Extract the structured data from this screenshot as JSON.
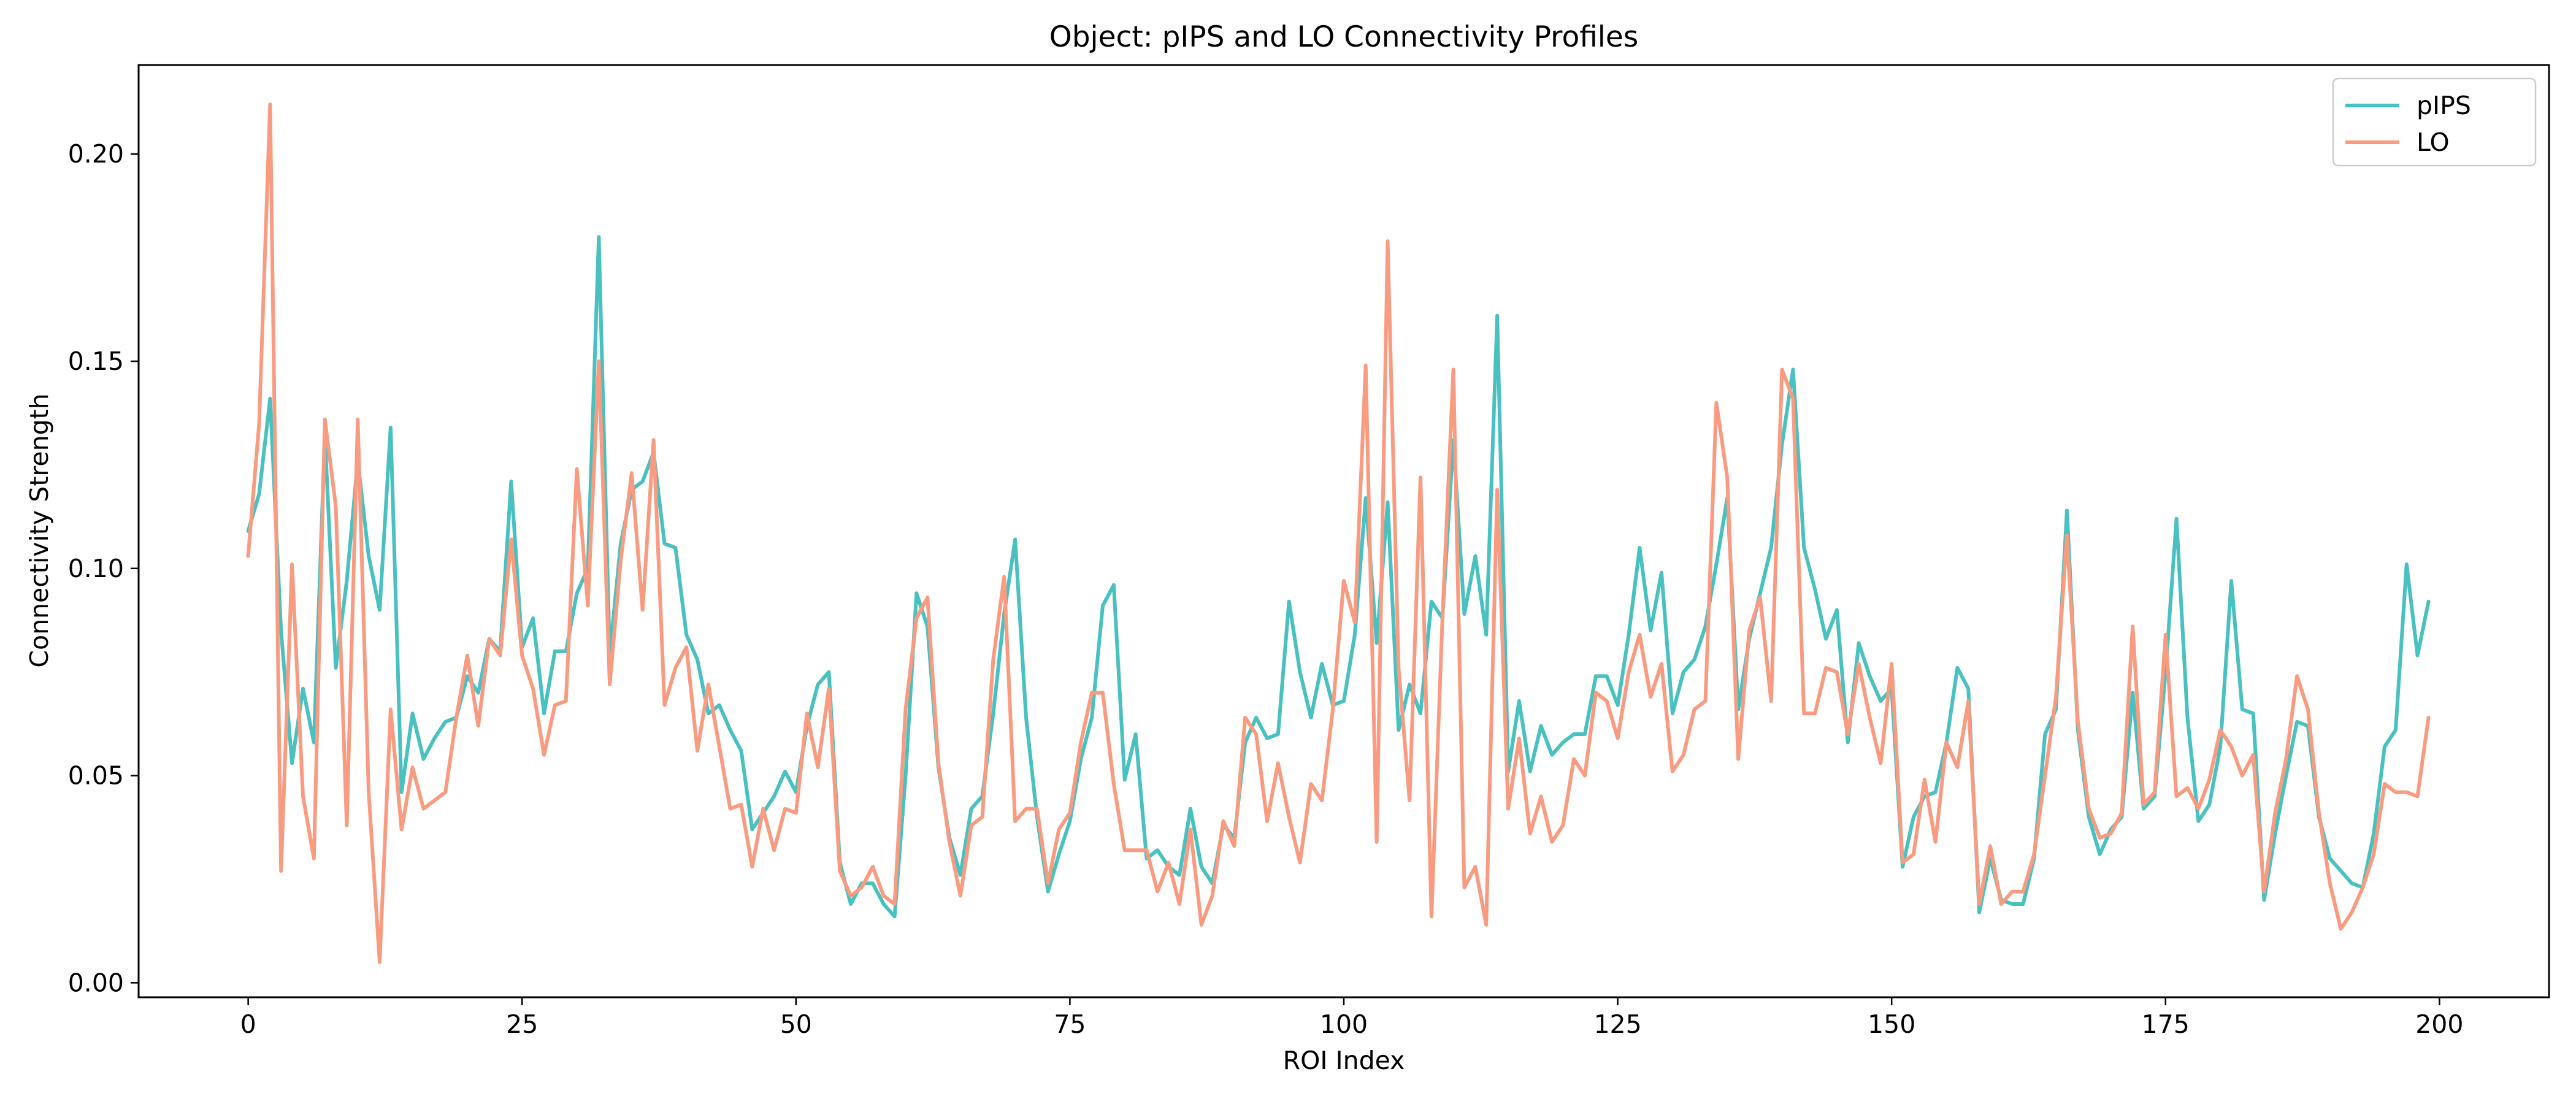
{
  "chart_data": {
    "type": "line",
    "title": "Object: pIPS and LO Connectivity Profiles",
    "xlabel": "ROI Index",
    "ylabel": "Connectivity Strength",
    "xlim": [
      -10,
      210
    ],
    "ylim": [
      -0.0035,
      0.2215
    ],
    "xticks": [
      0,
      25,
      50,
      75,
      100,
      125,
      150,
      175,
      200
    ],
    "yticks": [
      0.0,
      0.05,
      0.1,
      0.15,
      0.2
    ],
    "ytick_labels": [
      "0.00",
      "0.05",
      "0.10",
      "0.15",
      "0.20"
    ],
    "grid": false,
    "legend_position": "top-right",
    "series": [
      {
        "name": "pIPS",
        "color": "#48c1c0",
        "x_start": 0,
        "values": [
          0.109,
          0.118,
          0.141,
          0.085,
          0.053,
          0.071,
          0.058,
          0.132,
          0.076,
          0.097,
          0.126,
          0.103,
          0.09,
          0.134,
          0.046,
          0.065,
          0.054,
          0.059,
          0.063,
          0.064,
          0.074,
          0.07,
          0.083,
          0.08,
          0.121,
          0.081,
          0.088,
          0.065,
          0.08,
          0.08,
          0.094,
          0.1,
          0.18,
          0.079,
          0.106,
          0.119,
          0.121,
          0.128,
          0.106,
          0.105,
          0.084,
          0.078,
          0.065,
          0.067,
          0.061,
          0.056,
          0.037,
          0.041,
          0.045,
          0.051,
          0.046,
          0.062,
          0.072,
          0.075,
          0.029,
          0.019,
          0.024,
          0.024,
          0.019,
          0.016,
          0.05,
          0.094,
          0.086,
          0.052,
          0.035,
          0.026,
          0.042,
          0.045,
          0.065,
          0.089,
          0.107,
          0.064,
          0.04,
          0.022,
          0.031,
          0.039,
          0.054,
          0.064,
          0.091,
          0.096,
          0.049,
          0.06,
          0.03,
          0.032,
          0.028,
          0.026,
          0.042,
          0.028,
          0.024,
          0.038,
          0.035,
          0.058,
          0.064,
          0.059,
          0.06,
          0.092,
          0.075,
          0.064,
          0.077,
          0.067,
          0.068,
          0.084,
          0.117,
          0.082,
          0.116,
          0.061,
          0.072,
          0.065,
          0.092,
          0.088,
          0.131,
          0.089,
          0.103,
          0.084,
          0.161,
          0.051,
          0.068,
          0.051,
          0.062,
          0.055,
          0.058,
          0.06,
          0.06,
          0.074,
          0.074,
          0.067,
          0.084,
          0.105,
          0.085,
          0.099,
          0.065,
          0.075,
          0.078,
          0.086,
          0.101,
          0.117,
          0.066,
          0.083,
          0.094,
          0.105,
          0.13,
          0.148,
          0.105,
          0.095,
          0.083,
          0.09,
          0.058,
          0.082,
          0.074,
          0.068,
          0.071,
          0.028,
          0.04,
          0.045,
          0.046,
          0.058,
          0.076,
          0.071,
          0.017,
          0.03,
          0.02,
          0.019,
          0.019,
          0.03,
          0.06,
          0.066,
          0.114,
          0.061,
          0.04,
          0.031,
          0.037,
          0.04,
          0.07,
          0.042,
          0.045,
          0.075,
          0.112,
          0.064,
          0.039,
          0.043,
          0.057,
          0.097,
          0.066,
          0.065,
          0.02,
          0.036,
          0.05,
          0.063,
          0.062,
          0.04,
          0.03,
          0.027,
          0.024,
          0.023,
          0.036,
          0.057,
          0.061,
          0.101,
          0.079,
          0.092
        ]
      },
      {
        "name": "LO",
        "color": "#f99b80",
        "x_start": 0,
        "values": [
          0.103,
          0.135,
          0.212,
          0.027,
          0.101,
          0.045,
          0.03,
          0.136,
          0.115,
          0.038,
          0.136,
          0.046,
          0.005,
          0.066,
          0.037,
          0.052,
          0.042,
          0.044,
          0.046,
          0.064,
          0.079,
          0.062,
          0.083,
          0.079,
          0.107,
          0.079,
          0.071,
          0.055,
          0.067,
          0.068,
          0.124,
          0.091,
          0.15,
          0.072,
          0.102,
          0.123,
          0.09,
          0.131,
          0.067,
          0.076,
          0.081,
          0.056,
          0.072,
          0.057,
          0.042,
          0.043,
          0.028,
          0.042,
          0.032,
          0.042,
          0.041,
          0.065,
          0.052,
          0.071,
          0.027,
          0.021,
          0.023,
          0.028,
          0.021,
          0.019,
          0.066,
          0.088,
          0.093,
          0.053,
          0.034,
          0.021,
          0.038,
          0.04,
          0.078,
          0.098,
          0.039,
          0.042,
          0.042,
          0.024,
          0.037,
          0.041,
          0.058,
          0.07,
          0.07,
          0.048,
          0.032,
          0.032,
          0.032,
          0.022,
          0.029,
          0.019,
          0.037,
          0.014,
          0.021,
          0.039,
          0.033,
          0.064,
          0.06,
          0.039,
          0.053,
          0.04,
          0.029,
          0.048,
          0.044,
          0.066,
          0.097,
          0.087,
          0.149,
          0.034,
          0.179,
          0.076,
          0.044,
          0.122,
          0.016,
          0.088,
          0.148,
          0.023,
          0.028,
          0.014,
          0.119,
          0.042,
          0.059,
          0.036,
          0.045,
          0.034,
          0.038,
          0.054,
          0.05,
          0.07,
          0.068,
          0.059,
          0.075,
          0.084,
          0.069,
          0.077,
          0.051,
          0.055,
          0.066,
          0.068,
          0.14,
          0.122,
          0.054,
          0.085,
          0.093,
          0.068,
          0.148,
          0.141,
          0.065,
          0.065,
          0.076,
          0.075,
          0.06,
          0.077,
          0.064,
          0.053,
          0.077,
          0.029,
          0.031,
          0.049,
          0.034,
          0.058,
          0.052,
          0.068,
          0.019,
          0.033,
          0.019,
          0.022,
          0.022,
          0.031,
          0.05,
          0.069,
          0.108,
          0.063,
          0.042,
          0.035,
          0.036,
          0.041,
          0.086,
          0.043,
          0.046,
          0.084,
          0.045,
          0.047,
          0.042,
          0.049,
          0.061,
          0.057,
          0.05,
          0.055,
          0.022,
          0.041,
          0.054,
          0.074,
          0.066,
          0.041,
          0.024,
          0.013,
          0.017,
          0.023,
          0.031,
          0.048,
          0.046,
          0.046,
          0.045,
          0.064
        ]
      }
    ]
  }
}
